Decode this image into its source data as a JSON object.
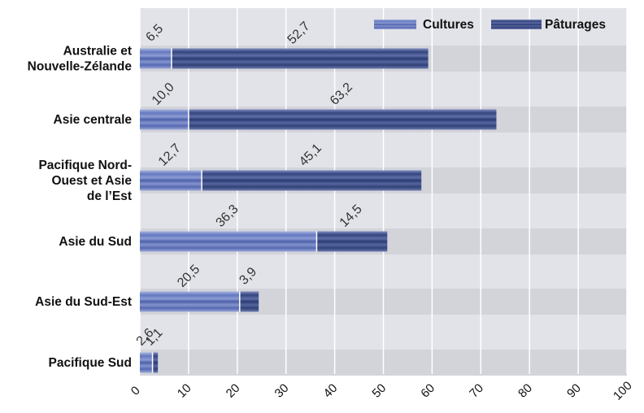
{
  "chart_data": {
    "type": "bar",
    "orientation": "horizontal",
    "stacked": true,
    "categories": [
      [
        "Australie et",
        "Nouvelle-Zélande"
      ],
      [
        "Asie centrale"
      ],
      [
        "Pacifique Nord-",
        "Ouest et Asie",
        "de l’Est"
      ],
      [
        "Asie du Sud"
      ],
      [
        "Asie du Sud-Est"
      ],
      [
        "Pacifique Sud"
      ]
    ],
    "series": [
      {
        "name": "Cultures",
        "values": [
          6.5,
          10.0,
          12.7,
          36.3,
          20.5,
          2.6
        ],
        "labels": [
          "6,5",
          "10,0",
          "12,7",
          "36,3",
          "20,5",
          "2,6"
        ],
        "color": "#5a6fb8"
      },
      {
        "name": "Pâturages",
        "values": [
          52.7,
          63.2,
          45.1,
          14.5,
          3.9,
          1.1
        ],
        "labels": [
          "52,7",
          "63,2",
          "45,1",
          "14,5",
          "3,9",
          "1,1"
        ],
        "color": "#3e4f8e"
      }
    ],
    "xlim": [
      0,
      100
    ],
    "xticks": [
      "0",
      "10",
      "20",
      "30",
      "40",
      "50",
      "60",
      "70",
      "80",
      "90",
      "100"
    ],
    "title": "",
    "xlabel": "",
    "ylabel": "",
    "legend_position": "top-right",
    "grid": true,
    "colors": {
      "plot_background": "#e2e3e8",
      "row_band": "#d3d4da",
      "gridline": "#ffffff"
    }
  }
}
